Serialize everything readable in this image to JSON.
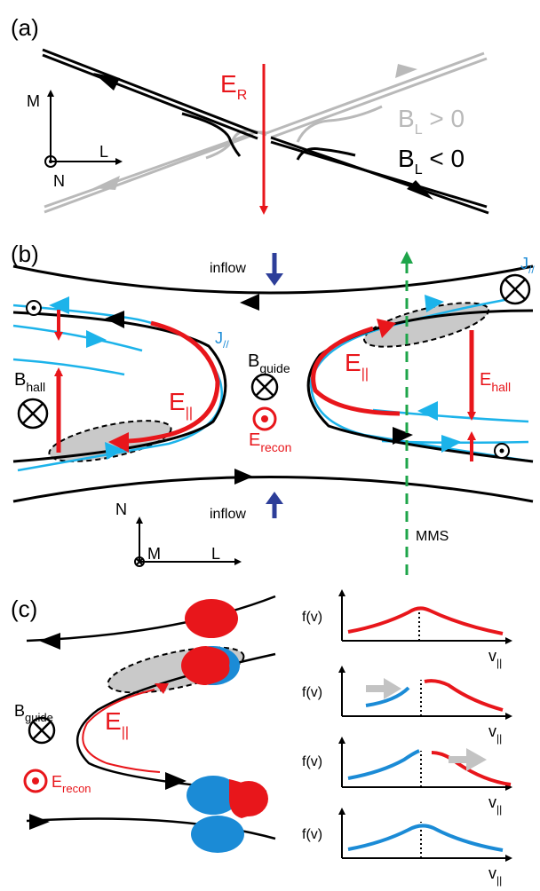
{
  "panels": {
    "a": {
      "label": "(a)",
      "field_label": "E",
      "field_sub": "R",
      "bl_pos_pre": "B",
      "bl_pos_sub": "L",
      "bl_pos_post": " > 0",
      "bl_neg_pre": "B",
      "bl_neg_sub": "L",
      "bl_neg_post": " < 0",
      "axis_m": "M",
      "axis_l": "L",
      "axis_n": "N"
    },
    "b": {
      "label": "(b)",
      "inflow_top": "inflow",
      "inflow_bottom": "inflow",
      "j_left": "J",
      "j_left_sub": "//",
      "j_right": "J",
      "j_right_sub": "//",
      "b_guide": "B",
      "b_guide_sub": "guide",
      "e_par_left": "E",
      "e_par_left_sub": "||",
      "e_par_right": "E",
      "e_par_right_sub": "||",
      "e_recon": "E",
      "e_recon_sub": "recon",
      "b_hall": "B",
      "b_hall_sub": "hall",
      "e_hall": "E",
      "e_hall_sub": "hall",
      "mms": "MMS",
      "axis_n": "N",
      "axis_m": "M",
      "axis_l": "L"
    },
    "c": {
      "label": "(c)",
      "b_guide": "B",
      "b_guide_sub": "guide",
      "e_par": "E",
      "e_par_sub": "||",
      "e_recon": "E",
      "e_recon_sub": "recon",
      "plots": [
        {
          "ylabel": "f(v)",
          "xlabel": "v",
          "xsub": "||"
        },
        {
          "ylabel": "f(v)",
          "xlabel": "v",
          "xsub": "||"
        },
        {
          "ylabel": "f(v)",
          "xlabel": "v",
          "xsub": "||"
        },
        {
          "ylabel": "f(v)",
          "xlabel": "v",
          "xsub": "||"
        }
      ]
    }
  },
  "colors": {
    "red": "#e8161b",
    "blue": "#1b8bd6",
    "light_blue": "#1cb3ea",
    "navy": "#2d3e99",
    "gray": "#b9b9b9",
    "green": "#1ea54a",
    "ellipse_gray": "#c9c9c9"
  }
}
